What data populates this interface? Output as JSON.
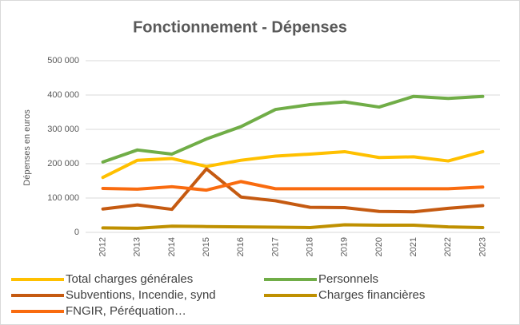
{
  "chart_data": {
    "type": "line",
    "title": "Fonctionnement - Dépenses",
    "y_label": "Dépenses en euros",
    "categories": [
      "2012",
      "2013",
      "2014",
      "2015",
      "2016",
      "2017",
      "2018",
      "2019",
      "2020",
      "2021",
      "2022",
      "2023"
    ],
    "ylim": [
      0,
      500000
    ],
    "yticks": [
      {
        "value": 0,
        "label": "0"
      },
      {
        "value": 100000,
        "label": "100 000"
      },
      {
        "value": 200000,
        "label": "200 000"
      },
      {
        "value": 300000,
        "label": "300 000"
      },
      {
        "value": 400000,
        "label": "400 000"
      },
      {
        "value": 500000,
        "label": "500 000"
      }
    ],
    "grid": true,
    "series": [
      {
        "name": "Total charges générales",
        "color": "#ffc000",
        "values": [
          160000,
          210000,
          215000,
          192000,
          210000,
          222000,
          228000,
          235000,
          218000,
          220000,
          208000,
          235000
        ]
      },
      {
        "name": "Personnels",
        "color": "#70ad47",
        "values": [
          205000,
          240000,
          228000,
          272000,
          308000,
          358000,
          372000,
          380000,
          365000,
          396000,
          390000,
          396000
        ]
      },
      {
        "name": "Subventions, Incendie, synd",
        "color": "#c55a11",
        "values": [
          68000,
          80000,
          67000,
          185000,
          103000,
          92000,
          73000,
          72000,
          61000,
          60000,
          70000,
          78000
        ]
      },
      {
        "name": "Charges financières",
        "color": "#bf9000",
        "values": [
          13000,
          12000,
          18000,
          17000,
          16000,
          15000,
          14000,
          22000,
          21000,
          21000,
          16000,
          14000
        ]
      },
      {
        "name": "FNGIR, Péréquation…",
        "color": "#f96b0f",
        "values": [
          128000,
          126000,
          133000,
          123000,
          148000,
          127000,
          127000,
          127000,
          127000,
          127000,
          127000,
          132000
        ]
      }
    ]
  }
}
